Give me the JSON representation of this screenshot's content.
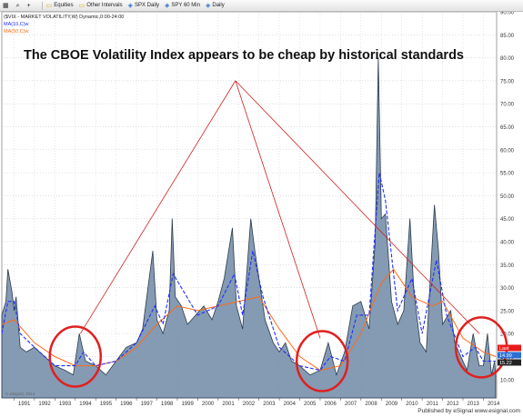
{
  "toolbar": {
    "items": [
      {
        "icon": "table-icon",
        "label": ""
      },
      {
        "icon": "zoom-icon",
        "label": ""
      },
      {
        "icon": "plus-icon",
        "label": ""
      },
      {
        "icon": "folder-icon",
        "label": "Equities"
      },
      {
        "icon": "folder-icon",
        "label": "Other Intervals"
      },
      {
        "icon": "chart-icon",
        "label": "SPX Daily"
      },
      {
        "icon": "chart-icon",
        "label": "SPY 60 Min"
      },
      {
        "icon": "chart-icon",
        "label": "Daily"
      }
    ]
  },
  "legend": {
    "line1": "($VIX - MARKET VOLATILITY,W) Dynamic,0:00-24:00",
    "line2": "MA(10,C)w",
    "line3": "MA(50,C)w"
  },
  "headline": "The CBOE Volatility Index appears to be cheap by historical standards",
  "price_label": "Last",
  "price_value": "14.99",
  "ma_label_1": "15.1",
  "ma_label_2": "15.22",
  "watermark": "© eSignal, 2014",
  "footer": "Published by eSignal    www.esignal.com",
  "colors": {
    "area": "#6f8aa6",
    "ma10": "#1f2fff",
    "ma50": "#ff6a1a",
    "trend": "#d21f1f",
    "circle": "#e02020"
  },
  "chart_data": {
    "type": "area",
    "yticks": [
      10,
      15,
      20,
      25,
      30,
      35,
      40,
      45,
      50,
      55,
      60,
      65,
      70,
      75,
      80,
      85,
      90
    ],
    "ylim": [
      6,
      90
    ],
    "xlim": [
      1990.4,
      2014.65
    ],
    "xticks": [
      "1991",
      "1992",
      "1993",
      "1994",
      "1995",
      "1996",
      "1997",
      "1998",
      "1999",
      "2000",
      "2001",
      "2002",
      "2003",
      "2004",
      "2005",
      "2006",
      "2007",
      "2008",
      "2009",
      "2010",
      "2011",
      "2012",
      "2013",
      "2014"
    ],
    "vix": [
      [
        1990.4,
        24
      ],
      [
        1990.6,
        27
      ],
      [
        1990.7,
        34
      ],
      [
        1990.9,
        29
      ],
      [
        1991.0,
        25
      ],
      [
        1991.1,
        28
      ],
      [
        1991.3,
        17
      ],
      [
        1991.6,
        16
      ],
      [
        1992.0,
        17
      ],
      [
        1992.5,
        15
      ],
      [
        1993.0,
        13
      ],
      [
        1993.5,
        12
      ],
      [
        1993.9,
        11
      ],
      [
        1994.2,
        20
      ],
      [
        1994.5,
        14
      ],
      [
        1995.0,
        13
      ],
      [
        1995.5,
        11
      ],
      [
        1996.0,
        14
      ],
      [
        1996.5,
        17
      ],
      [
        1997.0,
        18
      ],
      [
        1997.3,
        21
      ],
      [
        1997.8,
        38
      ],
      [
        1998.0,
        23
      ],
      [
        1998.3,
        20
      ],
      [
        1998.6,
        25
      ],
      [
        1998.75,
        45
      ],
      [
        1998.9,
        28
      ],
      [
        1999.2,
        26
      ],
      [
        1999.5,
        22
      ],
      [
        1999.9,
        24
      ],
      [
        2000.3,
        26
      ],
      [
        2000.7,
        23
      ],
      [
        2001.0,
        27
      ],
      [
        2001.3,
        32
      ],
      [
        2001.7,
        43
      ],
      [
        2001.9,
        26
      ],
      [
        2002.2,
        21
      ],
      [
        2002.6,
        45
      ],
      [
        2002.8,
        38
      ],
      [
        2003.0,
        32
      ],
      [
        2003.3,
        23
      ],
      [
        2003.7,
        18
      ],
      [
        2004.0,
        16
      ],
      [
        2004.3,
        18
      ],
      [
        2004.6,
        14
      ],
      [
        2005.0,
        13
      ],
      [
        2005.5,
        11
      ],
      [
        2006.0,
        12
      ],
      [
        2006.4,
        18
      ],
      [
        2006.8,
        11
      ],
      [
        2007.2,
        16
      ],
      [
        2007.6,
        26
      ],
      [
        2008.0,
        27
      ],
      [
        2008.4,
        21
      ],
      [
        2008.7,
        40
      ],
      [
        2008.85,
        80
      ],
      [
        2009.0,
        45
      ],
      [
        2009.2,
        46
      ],
      [
        2009.5,
        27
      ],
      [
        2009.8,
        22
      ],
      [
        2010.1,
        25
      ],
      [
        2010.4,
        45
      ],
      [
        2010.6,
        29
      ],
      [
        2010.9,
        18
      ],
      [
        2011.2,
        16
      ],
      [
        2011.6,
        48
      ],
      [
        2011.8,
        38
      ],
      [
        2012.0,
        22
      ],
      [
        2012.4,
        25
      ],
      [
        2012.6,
        18
      ],
      [
        2012.9,
        15
      ],
      [
        2013.2,
        12
      ],
      [
        2013.5,
        20
      ],
      [
        2013.8,
        13
      ],
      [
        2014.0,
        13
      ],
      [
        2014.2,
        20
      ],
      [
        2014.4,
        11
      ],
      [
        2014.55,
        14
      ],
      [
        2014.6,
        11
      ]
    ],
    "ma10": [
      [
        1990.4,
        20
      ],
      [
        1990.7,
        27
      ],
      [
        1991.0,
        27
      ],
      [
        1991.3,
        20
      ],
      [
        1992.0,
        17
      ],
      [
        1993.0,
        13
      ],
      [
        1994.0,
        13
      ],
      [
        1994.4,
        16
      ],
      [
        1995.0,
        13
      ],
      [
        1996.0,
        14
      ],
      [
        1997.0,
        18
      ],
      [
        1997.9,
        26
      ],
      [
        1998.3,
        22
      ],
      [
        1998.8,
        33
      ],
      [
        1999.2,
        30
      ],
      [
        2000.0,
        24
      ],
      [
        2001.0,
        26
      ],
      [
        2001.8,
        33
      ],
      [
        2002.2,
        24
      ],
      [
        2002.7,
        38
      ],
      [
        2003.2,
        28
      ],
      [
        2004.0,
        17
      ],
      [
        2005.0,
        13
      ],
      [
        2006.0,
        12
      ],
      [
        2006.5,
        15
      ],
      [
        2007.2,
        14
      ],
      [
        2007.8,
        24
      ],
      [
        2008.4,
        24
      ],
      [
        2008.9,
        55
      ],
      [
        2009.2,
        49
      ],
      [
        2009.8,
        25
      ],
      [
        2010.5,
        32
      ],
      [
        2011.0,
        20
      ],
      [
        2011.7,
        36
      ],
      [
        2012.2,
        24
      ],
      [
        2013.0,
        15
      ],
      [
        2013.6,
        17
      ],
      [
        2014.0,
        14
      ],
      [
        2014.6,
        14
      ]
    ],
    "ma50": [
      [
        1990.4,
        22
      ],
      [
        1991.0,
        23
      ],
      [
        1992.0,
        18
      ],
      [
        1993.0,
        15
      ],
      [
        1994.0,
        13
      ],
      [
        1995.0,
        13
      ],
      [
        1996.0,
        14
      ],
      [
        1997.0,
        17
      ],
      [
        1998.0,
        22
      ],
      [
        1999.0,
        26
      ],
      [
        2000.0,
        25
      ],
      [
        2001.0,
        26
      ],
      [
        2002.0,
        27
      ],
      [
        2003.0,
        28
      ],
      [
        2004.0,
        21
      ],
      [
        2005.0,
        15
      ],
      [
        2006.0,
        12
      ],
      [
        2007.0,
        13
      ],
      [
        2008.0,
        20
      ],
      [
        2009.0,
        31
      ],
      [
        2009.6,
        34
      ],
      [
        2010.5,
        28
      ],
      [
        2011.5,
        26
      ],
      [
        2012.0,
        27
      ],
      [
        2013.0,
        19
      ],
      [
        2014.0,
        16
      ],
      [
        2014.6,
        15
      ]
    ],
    "trend_lines": [
      [
        [
          1994.25,
          20
        ],
        [
          2001.85,
          75
        ]
      ],
      [
        [
          2001.85,
          75
        ],
        [
          2006.0,
          19
        ]
      ],
      [
        [
          2001.85,
          75
        ],
        [
          2013.8,
          20
        ]
      ]
    ],
    "highlights": [
      [
        1994.0,
        15
      ],
      [
        2006.1,
        14
      ],
      [
        2013.9,
        17
      ]
    ]
  }
}
